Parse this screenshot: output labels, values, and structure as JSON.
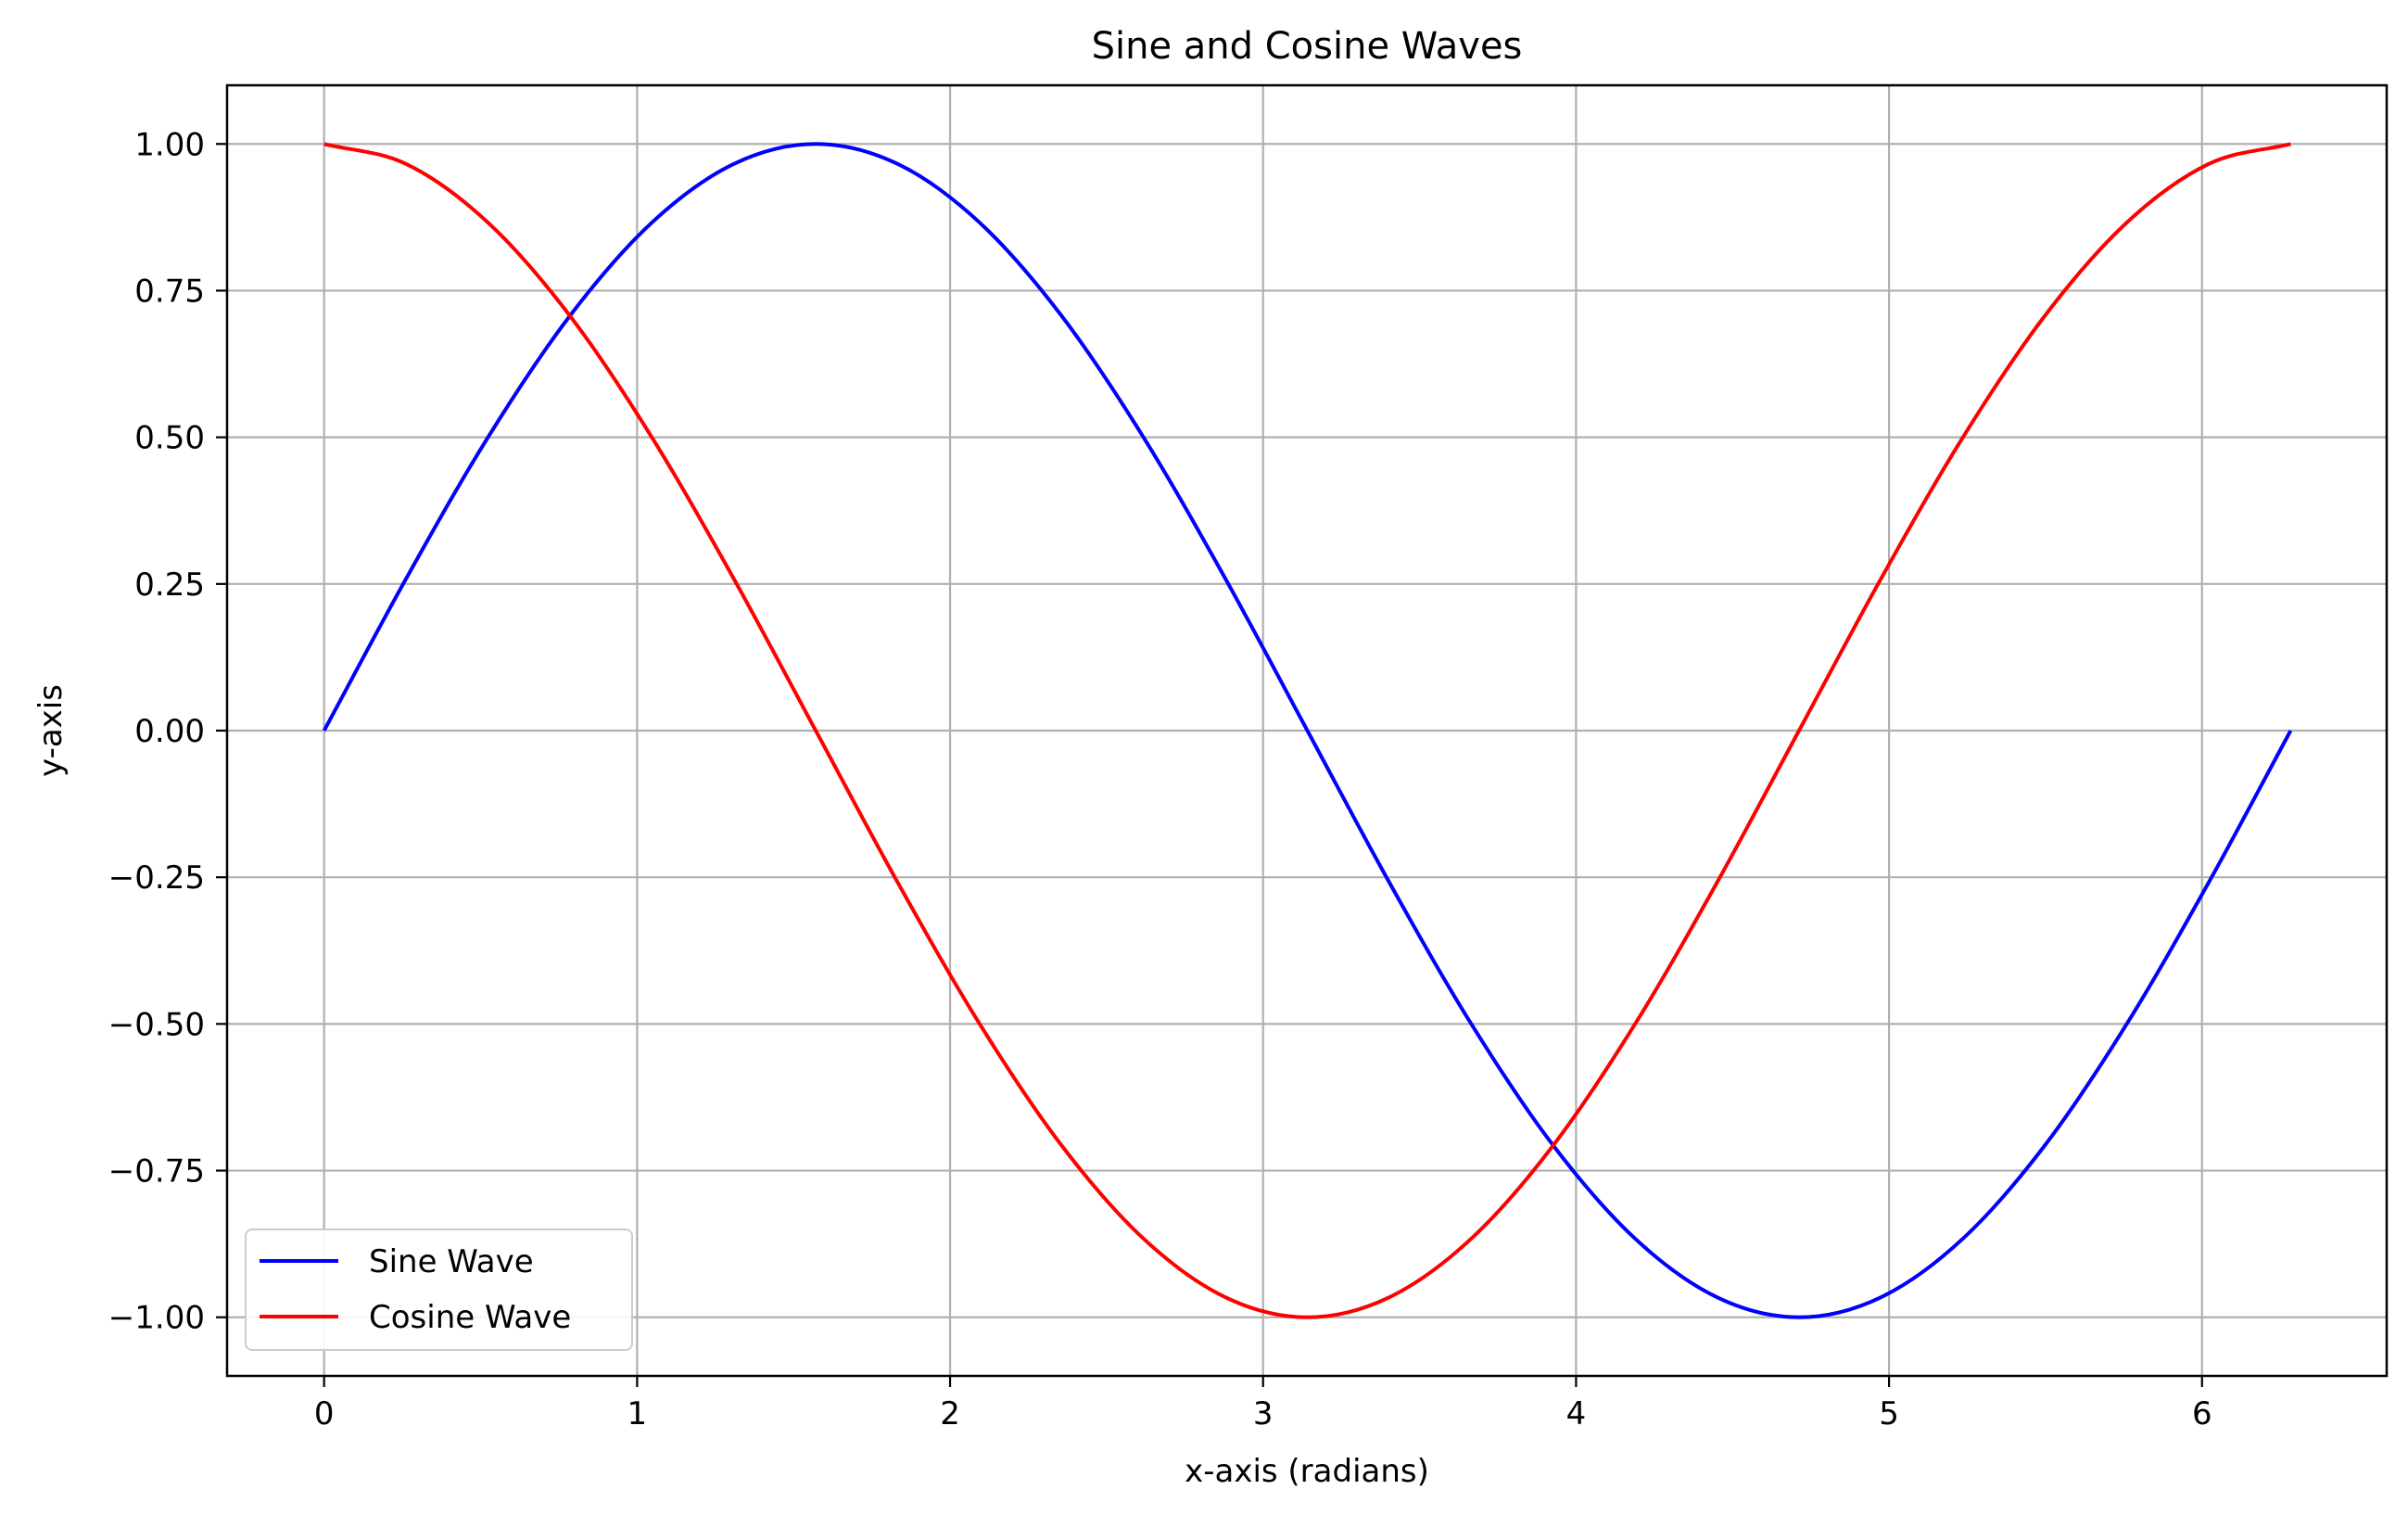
{
  "chart_data": {
    "type": "line",
    "title": "Sine and Cosine Waves",
    "xlabel": "x-axis (radians)",
    "ylabel": "y-axis",
    "xlim": [
      -0.31,
      6.59
    ],
    "ylim": [
      -1.1,
      1.1
    ],
    "x_ticks": [
      0,
      1,
      2,
      3,
      4,
      5,
      6
    ],
    "x_tick_labels": [
      "0",
      "1",
      "2",
      "3",
      "4",
      "5",
      "6"
    ],
    "y_ticks": [
      1.0,
      0.75,
      0.5,
      0.25,
      0.0,
      -0.25,
      -0.5,
      -0.75,
      -1.0
    ],
    "y_tick_labels": [
      "1.00",
      "0.75",
      "0.50",
      "0.25",
      "0.00",
      "−0.25",
      "−0.50",
      "−0.75",
      "−1.00"
    ],
    "grid": true,
    "legend": {
      "placement": "bottom-left",
      "entries": [
        "Sine Wave",
        "Cosine Wave"
      ]
    },
    "series": [
      {
        "name": "Sine Wave",
        "color": "#0000ff",
        "x": [
          0,
          0.2618,
          0.5236,
          0.7854,
          1.0472,
          1.309,
          1.5708,
          1.8326,
          2.0944,
          2.3562,
          2.618,
          2.8798,
          3.1416,
          3.4034,
          3.6652,
          3.927,
          4.1888,
          4.4506,
          4.7124,
          4.9742,
          5.236,
          5.4978,
          5.7596,
          6.0214,
          6.2832
        ],
        "y": [
          0,
          0.2588,
          0.5,
          0.7071,
          0.866,
          0.9659,
          1,
          0.9659,
          0.866,
          0.7071,
          0.5,
          0.2588,
          0,
          -0.2588,
          -0.5,
          -0.7071,
          -0.866,
          -0.9659,
          -1,
          -0.9659,
          -0.866,
          -0.7071,
          -0.5,
          -0.2588,
          0
        ]
      },
      {
        "name": "Cosine Wave",
        "color": "#ff0000",
        "x": [
          0,
          0.2618,
          0.5236,
          0.7854,
          1.0472,
          1.309,
          1.5708,
          1.8326,
          2.0944,
          2.3562,
          2.618,
          2.8798,
          3.1416,
          3.4034,
          3.6652,
          3.927,
          4.1888,
          4.4506,
          4.7124,
          4.9742,
          5.236,
          5.4978,
          5.7596,
          6.0214,
          6.2832
        ],
        "y": [
          1,
          0.9659,
          0.866,
          0.7071,
          0.5,
          0.2588,
          0,
          -0.2588,
          -0.5,
          -0.7071,
          -0.866,
          -0.9659,
          -1,
          -0.9659,
          -0.866,
          -0.7071,
          -0.5,
          -0.2588,
          0,
          0.2588,
          0.5,
          0.7071,
          0.866,
          0.9659,
          1
        ]
      }
    ]
  }
}
